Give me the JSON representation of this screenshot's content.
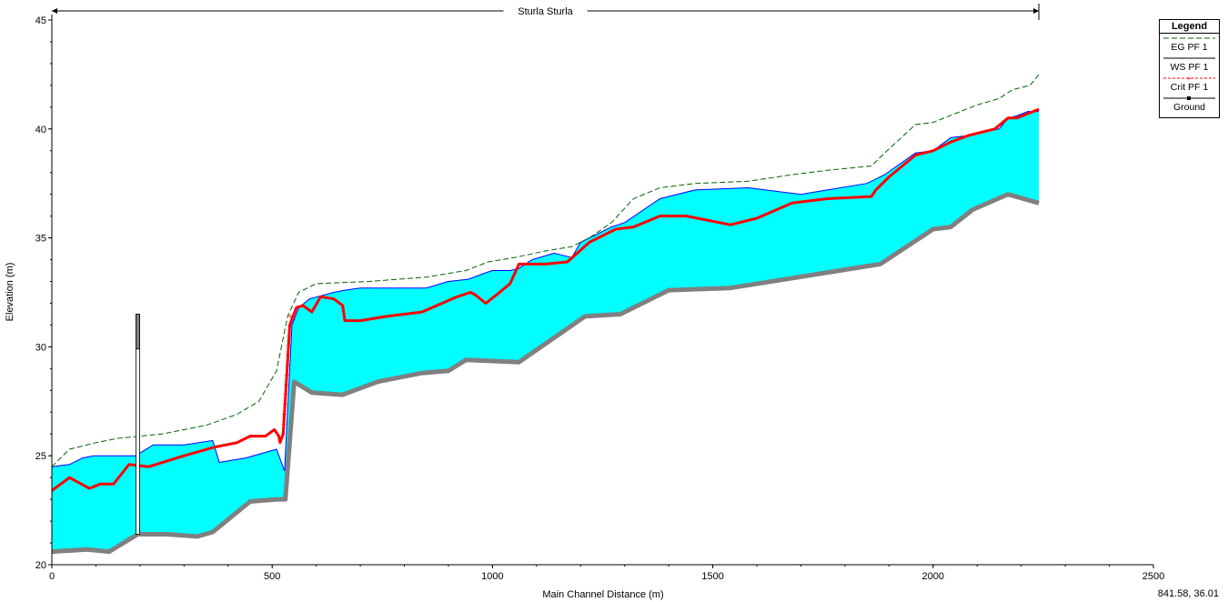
{
  "chart_data": {
    "type": "line",
    "title": "Sturla Sturla",
    "xlabel": "Main Channel Distance (m)",
    "ylabel": "Elevation (m)",
    "xlim": [
      0,
      2500
    ],
    "ylim": [
      20,
      45
    ],
    "x_ticks": [
      0,
      500,
      1000,
      1500,
      2000,
      2500
    ],
    "y_ticks": [
      20,
      25,
      30,
      35,
      40,
      45
    ],
    "reach_span": [
      0,
      2240
    ],
    "legend_title": "Legend",
    "legend_position": "top-right",
    "legend": [
      "EG  PF 1",
      "WS  PF 1",
      "Crit  PF 1",
      "Ground"
    ],
    "colors": {
      "water": "#00ffff",
      "water_edge": "#0000ff",
      "eg": "#006400",
      "crit": "#ff0000",
      "ground": "#808080"
    },
    "series": [
      {
        "name": "Ground",
        "x": [
          0,
          80,
          130,
          195,
          260,
          330,
          365,
          450,
          510,
          530,
          550,
          590,
          660,
          740,
          840,
          900,
          940,
          1060,
          1210,
          1290,
          1400,
          1540,
          1880,
          2000,
          2040,
          2090,
          2170,
          2240
        ],
        "y": [
          20.6,
          20.7,
          20.6,
          21.4,
          21.4,
          21.3,
          21.5,
          22.9,
          23.0,
          23.0,
          28.4,
          27.9,
          27.8,
          28.4,
          28.8,
          28.9,
          29.4,
          29.3,
          31.4,
          31.5,
          32.6,
          32.7,
          33.8,
          35.4,
          35.5,
          36.3,
          37.0,
          36.6
        ]
      },
      {
        "name": "WS  PF 1",
        "x": [
          0,
          40,
          70,
          95,
          130,
          190,
          230,
          300,
          365,
          380,
          440,
          510,
          528,
          545,
          560,
          585,
          640,
          665,
          700,
          850,
          900,
          945,
          985,
          1000,
          1040,
          1060,
          1090,
          1140,
          1160,
          1180,
          1200,
          1240,
          1270,
          1300,
          1380,
          1460,
          1580,
          1620,
          1700,
          1760,
          1850,
          1870,
          1890,
          1960,
          2000,
          2040,
          2080,
          2120,
          2150,
          2170,
          2190,
          2215,
          2240
        ],
        "y": [
          24.5,
          24.6,
          24.9,
          25.0,
          25.0,
          25.0,
          25.5,
          25.5,
          25.7,
          24.7,
          24.9,
          25.3,
          24.3,
          31.0,
          31.8,
          32.2,
          32.5,
          32.6,
          32.7,
          32.7,
          33.0,
          33.1,
          33.4,
          33.5,
          33.5,
          33.6,
          34.0,
          34.3,
          34.2,
          34.1,
          34.8,
          35.2,
          35.5,
          35.7,
          36.8,
          37.2,
          37.3,
          37.2,
          37.0,
          37.2,
          37.5,
          37.7,
          37.9,
          38.9,
          39.0,
          39.6,
          39.7,
          39.9,
          40.0,
          40.5,
          40.6,
          40.8,
          40.8
        ]
      },
      {
        "name": "Crit  PF 1",
        "x": [
          0,
          40,
          85,
          110,
          140,
          175,
          220,
          300,
          370,
          420,
          450,
          485,
          505,
          515,
          518,
          525,
          540,
          555,
          570,
          590,
          610,
          640,
          660,
          665,
          700,
          760,
          840,
          920,
          950,
          960,
          985,
          1010,
          1040,
          1060,
          1120,
          1170,
          1220,
          1280,
          1320,
          1380,
          1440,
          1540,
          1600,
          1680,
          1760,
          1860,
          1870,
          1900,
          1960,
          2000,
          2040,
          2080,
          2140,
          2170,
          2190,
          2215,
          2240
        ],
        "y": [
          23.4,
          24.0,
          23.5,
          23.7,
          23.7,
          24.6,
          24.5,
          25.0,
          25.4,
          25.6,
          25.9,
          25.9,
          26.2,
          25.9,
          25.6,
          26.0,
          31.0,
          31.8,
          31.9,
          31.6,
          32.3,
          32.2,
          31.9,
          31.2,
          31.2,
          31.4,
          31.6,
          32.3,
          32.5,
          32.4,
          32.0,
          32.4,
          32.9,
          33.8,
          33.8,
          33.9,
          34.8,
          35.4,
          35.5,
          36.0,
          36.0,
          35.6,
          35.9,
          36.6,
          36.8,
          36.9,
          37.2,
          37.8,
          38.8,
          39.0,
          39.4,
          39.7,
          40.0,
          40.5,
          40.5,
          40.7,
          40.9
        ]
      },
      {
        "name": "EG  PF 1",
        "x": [
          0,
          40,
          100,
          150,
          250,
          350,
          420,
          470,
          510,
          535,
          560,
          600,
          720,
          850,
          940,
          990,
          1050,
          1120,
          1180,
          1220,
          1270,
          1320,
          1380,
          1460,
          1580,
          1680,
          1760,
          1860,
          1890,
          1960,
          2000,
          2050,
          2100,
          2150,
          2180,
          2220,
          2240
        ],
        "y": [
          24.5,
          25.3,
          25.6,
          25.8,
          26.0,
          26.4,
          26.9,
          27.5,
          28.9,
          31.4,
          32.5,
          32.9,
          33.0,
          33.2,
          33.5,
          33.9,
          34.1,
          34.4,
          34.6,
          35.0,
          35.7,
          36.8,
          37.3,
          37.5,
          37.6,
          37.9,
          38.1,
          38.3,
          38.9,
          40.2,
          40.3,
          40.7,
          41.1,
          41.4,
          41.8,
          42.0,
          42.5
        ]
      }
    ],
    "structure": {
      "x": 195,
      "bottom": 21.4,
      "top": 31.5
    }
  },
  "status": {
    "cursor_readout": "841.58, 36.01"
  }
}
